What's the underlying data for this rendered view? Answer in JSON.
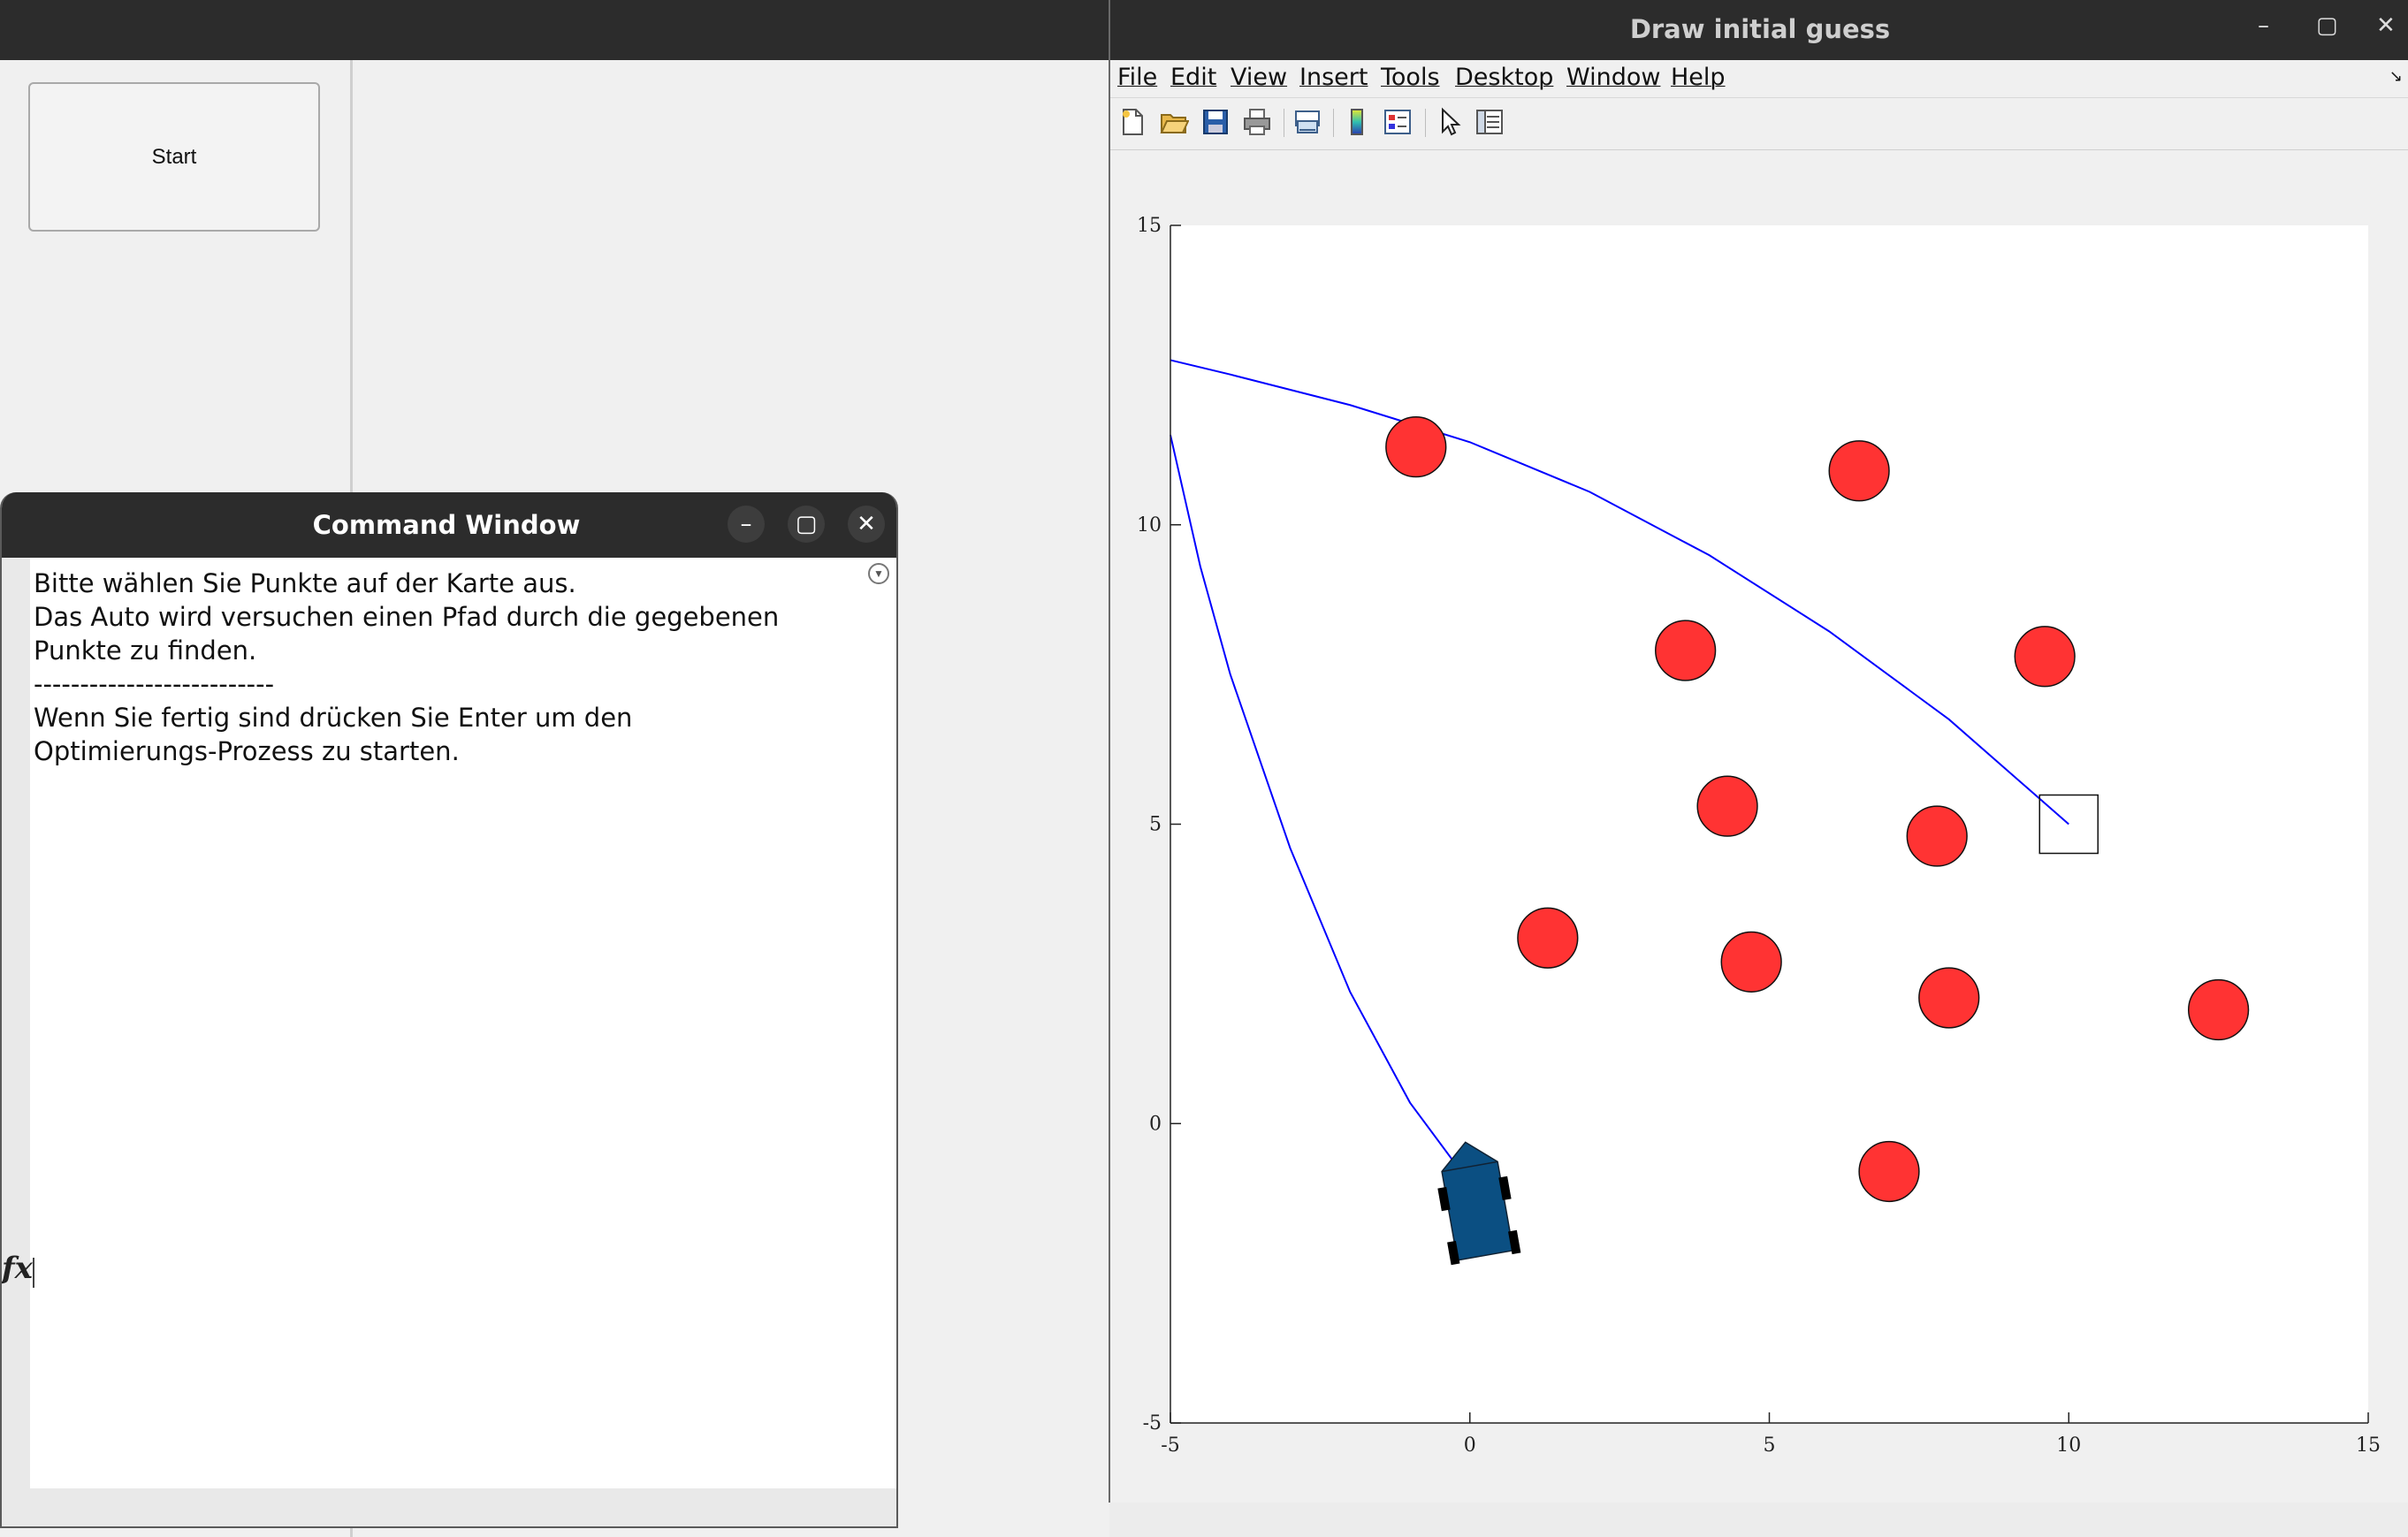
{
  "app": {
    "start_button_label": "Start"
  },
  "command_window": {
    "title": "Command Window",
    "minimize_label": "–",
    "maximize_label": "▢",
    "close_label": "✕",
    "lines": [
      "Bitte wählen Sie Punkte auf der Karte aus.",
      "Das Auto wird versuchen einen Pfad durch die gegebenen",
      "Punkte zu finden.",
      "--------------------------",
      "Wenn Sie fertig sind drücken Sie Enter um den",
      "Optimierungs-Prozess zu starten."
    ],
    "prompt": "fx"
  },
  "figure_window": {
    "title": "Draw initial guess",
    "minimize_label": "–",
    "maximize_label": "▢",
    "close_label": "✕",
    "menu": [
      "File",
      "Edit",
      "View",
      "Insert",
      "Tools",
      "Desktop",
      "Window",
      "Help"
    ],
    "toolbar_icons": [
      "new-figure-icon",
      "open-file-icon",
      "save-icon",
      "print-icon",
      "link-plot-icon",
      "colorbar-icon",
      "legend-icon",
      "pointer-icon",
      "property-inspector-icon"
    ]
  },
  "chart_data": {
    "type": "scatter",
    "xlim": [
      -5,
      15
    ],
    "ylim": [
      -5,
      15
    ],
    "xticks": [
      "-5",
      "0",
      "5",
      "10",
      "15"
    ],
    "yticks": [
      "-5",
      "0",
      "5",
      "10",
      "15"
    ],
    "grid": false,
    "obstacles": [
      {
        "x": -0.9,
        "y": 11.3
      },
      {
        "x": 6.5,
        "y": 10.9
      },
      {
        "x": 3.6,
        "y": 7.9
      },
      {
        "x": 9.6,
        "y": 7.8
      },
      {
        "x": 4.3,
        "y": 5.3
      },
      {
        "x": 7.8,
        "y": 4.8
      },
      {
        "x": 1.3,
        "y": 3.1
      },
      {
        "x": 4.7,
        "y": 2.7
      },
      {
        "x": 8.0,
        "y": 2.1
      },
      {
        "x": 12.5,
        "y": 1.9
      },
      {
        "x": 7.0,
        "y": -0.8
      }
    ],
    "obstacle_color": "#ff3333",
    "path_color": "#0000ff",
    "paths": [
      {
        "x": [
          10.0,
          8.0,
          6.0,
          4.0,
          2.0,
          0.0,
          -2.0,
          -4.0,
          -5.0
        ],
        "y": [
          5.0,
          6.75,
          8.22,
          9.49,
          10.55,
          11.38,
          12.0,
          12.51,
          12.75
        ]
      },
      {
        "x": [
          0.0,
          -1.0,
          -2.0,
          -3.0,
          -4.0,
          -4.5,
          -5.0
        ],
        "y": [
          -1.0,
          0.35,
          2.2,
          4.6,
          7.5,
          9.3,
          11.5
        ]
      }
    ],
    "target_marker": {
      "x": 10.0,
      "y": 5.0,
      "shape": "square"
    },
    "car": {
      "x": 0.1,
      "y": -1.3,
      "color": "#0b4f82"
    }
  }
}
